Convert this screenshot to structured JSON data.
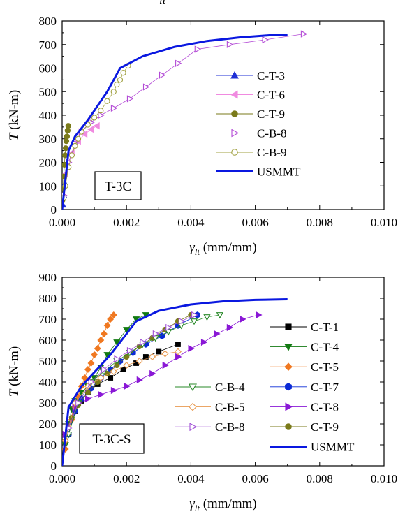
{
  "top_fragment": "lt",
  "chart_data": [
    {
      "type": "scatter",
      "panel_label": "T-3C",
      "xlabel_symbol": "γ",
      "xlabel_sub": "lt",
      "xlabel_unit": " (mm/mm)",
      "ylabel_symbol": "T",
      "ylabel_unit": " (kN-m)",
      "xlim": [
        0,
        0.01
      ],
      "ylim": [
        0,
        800
      ],
      "xticks": [
        "0.000",
        "0.002",
        "0.004",
        "0.006",
        "0.008",
        "0.010"
      ],
      "yticks": [
        "0",
        "100",
        "200",
        "300",
        "400",
        "500",
        "600",
        "700",
        "800"
      ],
      "legend_position": "center-right",
      "series": [
        {
          "name": "C-T-3",
          "color": "#1f2fd6",
          "marker": "triangle-up",
          "filled": true,
          "x": [
            2e-05,
            5e-05,
            9e-05
          ],
          "y": [
            20,
            60,
            110
          ]
        },
        {
          "name": "C-T-6",
          "color": "#f08ae0",
          "marker": "triangle-left",
          "filled": true,
          "x": [
            0.0001,
            0.0003,
            0.0005,
            0.0007,
            0.0009,
            0.00108
          ],
          "y": [
            150,
            240,
            290,
            320,
            340,
            355
          ]
        },
        {
          "name": "C-T-9",
          "color": "#7a7a1a",
          "marker": "circle",
          "filled": true,
          "x": [
            1e-05,
            3e-05,
            5e-05,
            7e-05,
            9e-05,
            0.00011,
            0.00013,
            0.00015,
            0.00017,
            0.00019
          ],
          "y": [
            40,
            90,
            140,
            190,
            230,
            260,
            290,
            310,
            335,
            355
          ]
        },
        {
          "name": "C-B-8",
          "color": "#b34ad6",
          "marker": "triangle-right",
          "filled": false,
          "x": [
            5e-05,
            0.0002,
            0.0004,
            0.0006,
            0.0009,
            0.0012,
            0.0016,
            0.0021,
            0.0026,
            0.0031,
            0.0036,
            0.0042,
            0.0052,
            0.0063,
            0.0075
          ],
          "y": [
            60,
            200,
            280,
            330,
            370,
            400,
            430,
            470,
            520,
            570,
            620,
            680,
            700,
            720,
            745
          ]
        },
        {
          "name": "C-B-9",
          "color": "#a0a040",
          "marker": "circle",
          "filled": false,
          "x": [
            5e-05,
            0.0001,
            0.0002,
            0.0003,
            0.0004,
            0.0005,
            0.0006,
            0.0008,
            0.001,
            0.0012,
            0.0014,
            0.0016,
            0.0017,
            0.0018,
            0.0019,
            0.00205
          ],
          "y": [
            50,
            100,
            180,
            230,
            270,
            300,
            330,
            360,
            390,
            420,
            460,
            500,
            530,
            550,
            580,
            610
          ]
        },
        {
          "name": "USMMT",
          "color": "#0a18e0",
          "marker": "line",
          "filled": false,
          "x": [
            0.0,
            0.0002,
            0.0004,
            0.0006,
            0.0008,
            0.001,
            0.0012,
            0.0014,
            0.0016,
            0.0018,
            0.0025,
            0.0035,
            0.0045,
            0.0055,
            0.0065,
            0.007
          ],
          "y": [
            0,
            250,
            310,
            345,
            380,
            420,
            460,
            500,
            550,
            600,
            650,
            690,
            715,
            730,
            740,
            742
          ]
        }
      ]
    },
    {
      "type": "scatter",
      "panel_label": "T-3C-S",
      "xlabel_symbol": "γ",
      "xlabel_sub": "lt",
      "xlabel_unit": " (mm/mm)",
      "ylabel_symbol": "T",
      "ylabel_unit": " (kN-m)",
      "xlim": [
        0,
        0.01
      ],
      "ylim": [
        0,
        900
      ],
      "xticks": [
        "0.000",
        "0.002",
        "0.004",
        "0.006",
        "0.008",
        "0.010"
      ],
      "yticks": [
        "0",
        "100",
        "200",
        "300",
        "400",
        "500",
        "600",
        "700",
        "800",
        "900"
      ],
      "legend_position": "right",
      "series": [
        {
          "name": "C-T-1",
          "color": "#000000",
          "marker": "square",
          "filled": true,
          "x": [
            0.0002,
            0.0004,
            0.0006,
            0.0008,
            0.0011,
            0.0015,
            0.0019,
            0.0023,
            0.0026,
            0.003,
            0.0036
          ],
          "y": [
            150,
            260,
            310,
            350,
            390,
            420,
            460,
            490,
            520,
            545,
            580
          ]
        },
        {
          "name": "C-T-4",
          "color": "#127a12",
          "marker": "triangle-down",
          "filled": true,
          "x": [
            0.0001,
            0.0002,
            0.0003,
            0.0004,
            0.0006,
            0.0008,
            0.001,
            0.0012,
            0.0014,
            0.0017,
            0.002,
            0.0023,
            0.0026
          ],
          "y": [
            100,
            200,
            270,
            310,
            350,
            380,
            420,
            470,
            530,
            590,
            650,
            700,
            720
          ]
        },
        {
          "name": "C-T-5",
          "color": "#f07820",
          "marker": "diamond",
          "filled": true,
          "x": [
            0.0001,
            0.0002,
            0.0003,
            0.0004,
            0.0005,
            0.0006,
            0.0007,
            0.0008,
            0.0009,
            0.001,
            0.0011,
            0.0012,
            0.0013,
            0.0014,
            0.0015,
            0.0016
          ],
          "y": [
            80,
            150,
            220,
            280,
            330,
            380,
            420,
            460,
            490,
            530,
            560,
            600,
            630,
            670,
            700,
            720
          ]
        },
        {
          "name": "C-T-7",
          "color": "#0a2ad6",
          "marker": "hexagon",
          "filled": true,
          "x": [
            0.0002,
            0.0004,
            0.0006,
            0.0009,
            0.0012,
            0.0015,
            0.0018,
            0.0022,
            0.0026,
            0.0031,
            0.0036,
            0.0042
          ],
          "y": [
            150,
            260,
            320,
            370,
            420,
            460,
            500,
            540,
            580,
            620,
            670,
            720
          ]
        },
        {
          "name": "C-T-8",
          "color": "#8a18d6",
          "marker": "triangle-right",
          "filled": true,
          "x": [
            0.0001,
            0.0004,
            0.0008,
            0.0012,
            0.0016,
            0.002,
            0.0024,
            0.0028,
            0.0032,
            0.0036,
            0.004,
            0.0044,
            0.0048,
            0.0052,
            0.0056,
            0.0061
          ],
          "y": [
            150,
            280,
            320,
            340,
            360,
            380,
            410,
            440,
            480,
            520,
            560,
            590,
            630,
            660,
            700,
            720
          ]
        },
        {
          "name": "C-T-9",
          "color": "#7a7a1a",
          "marker": "circle",
          "filled": true,
          "x": [
            0.0001,
            0.0003,
            0.0005,
            0.0008,
            0.0011,
            0.0014,
            0.0017,
            0.002,
            0.0024,
            0.0028,
            0.0032,
            0.0036,
            0.004
          ],
          "y": [
            120,
            230,
            290,
            350,
            400,
            440,
            480,
            520,
            570,
            610,
            650,
            690,
            720
          ]
        },
        {
          "name": "C-B-4",
          "color": "#2a8a2a",
          "marker": "triangle-down",
          "filled": false,
          "x": [
            0.0002,
            0.0005,
            0.0009,
            0.0013,
            0.0017,
            0.0021,
            0.0025,
            0.0029,
            0.0033,
            0.0037,
            0.0041,
            0.0045,
            0.0049
          ],
          "y": [
            150,
            300,
            400,
            450,
            500,
            540,
            580,
            610,
            640,
            670,
            690,
            710,
            720
          ]
        },
        {
          "name": "C-B-5",
          "color": "#e89a50",
          "marker": "diamond",
          "filled": false,
          "x": [
            0.0001,
            0.0004,
            0.0008,
            0.0012,
            0.0016,
            0.002,
            0.0024,
            0.0028,
            0.0032,
            0.0036
          ],
          "y": [
            120,
            300,
            380,
            420,
            450,
            480,
            500,
            520,
            535,
            545
          ]
        },
        {
          "name": "C-B-8",
          "color": "#a050d6",
          "marker": "triangle-right",
          "filled": false,
          "x": [
            0.0002,
            0.0005,
            0.0009,
            0.0013,
            0.0017,
            0.0021,
            0.0025,
            0.0029,
            0.0033,
            0.0037,
            0.0041
          ],
          "y": [
            180,
            300,
            400,
            460,
            510,
            550,
            590,
            630,
            660,
            690,
            720
          ]
        },
        {
          "name": "USMMT",
          "color": "#0a18e0",
          "marker": "line",
          "filled": false,
          "x": [
            0.0,
            0.0002,
            0.0004,
            0.0006,
            0.0009,
            0.0012,
            0.0015,
            0.0018,
            0.0021,
            0.0023,
            0.003,
            0.004,
            0.005,
            0.006,
            0.007
          ],
          "y": [
            0,
            280,
            330,
            380,
            430,
            480,
            530,
            590,
            650,
            690,
            740,
            770,
            785,
            792,
            795
          ]
        }
      ]
    }
  ]
}
